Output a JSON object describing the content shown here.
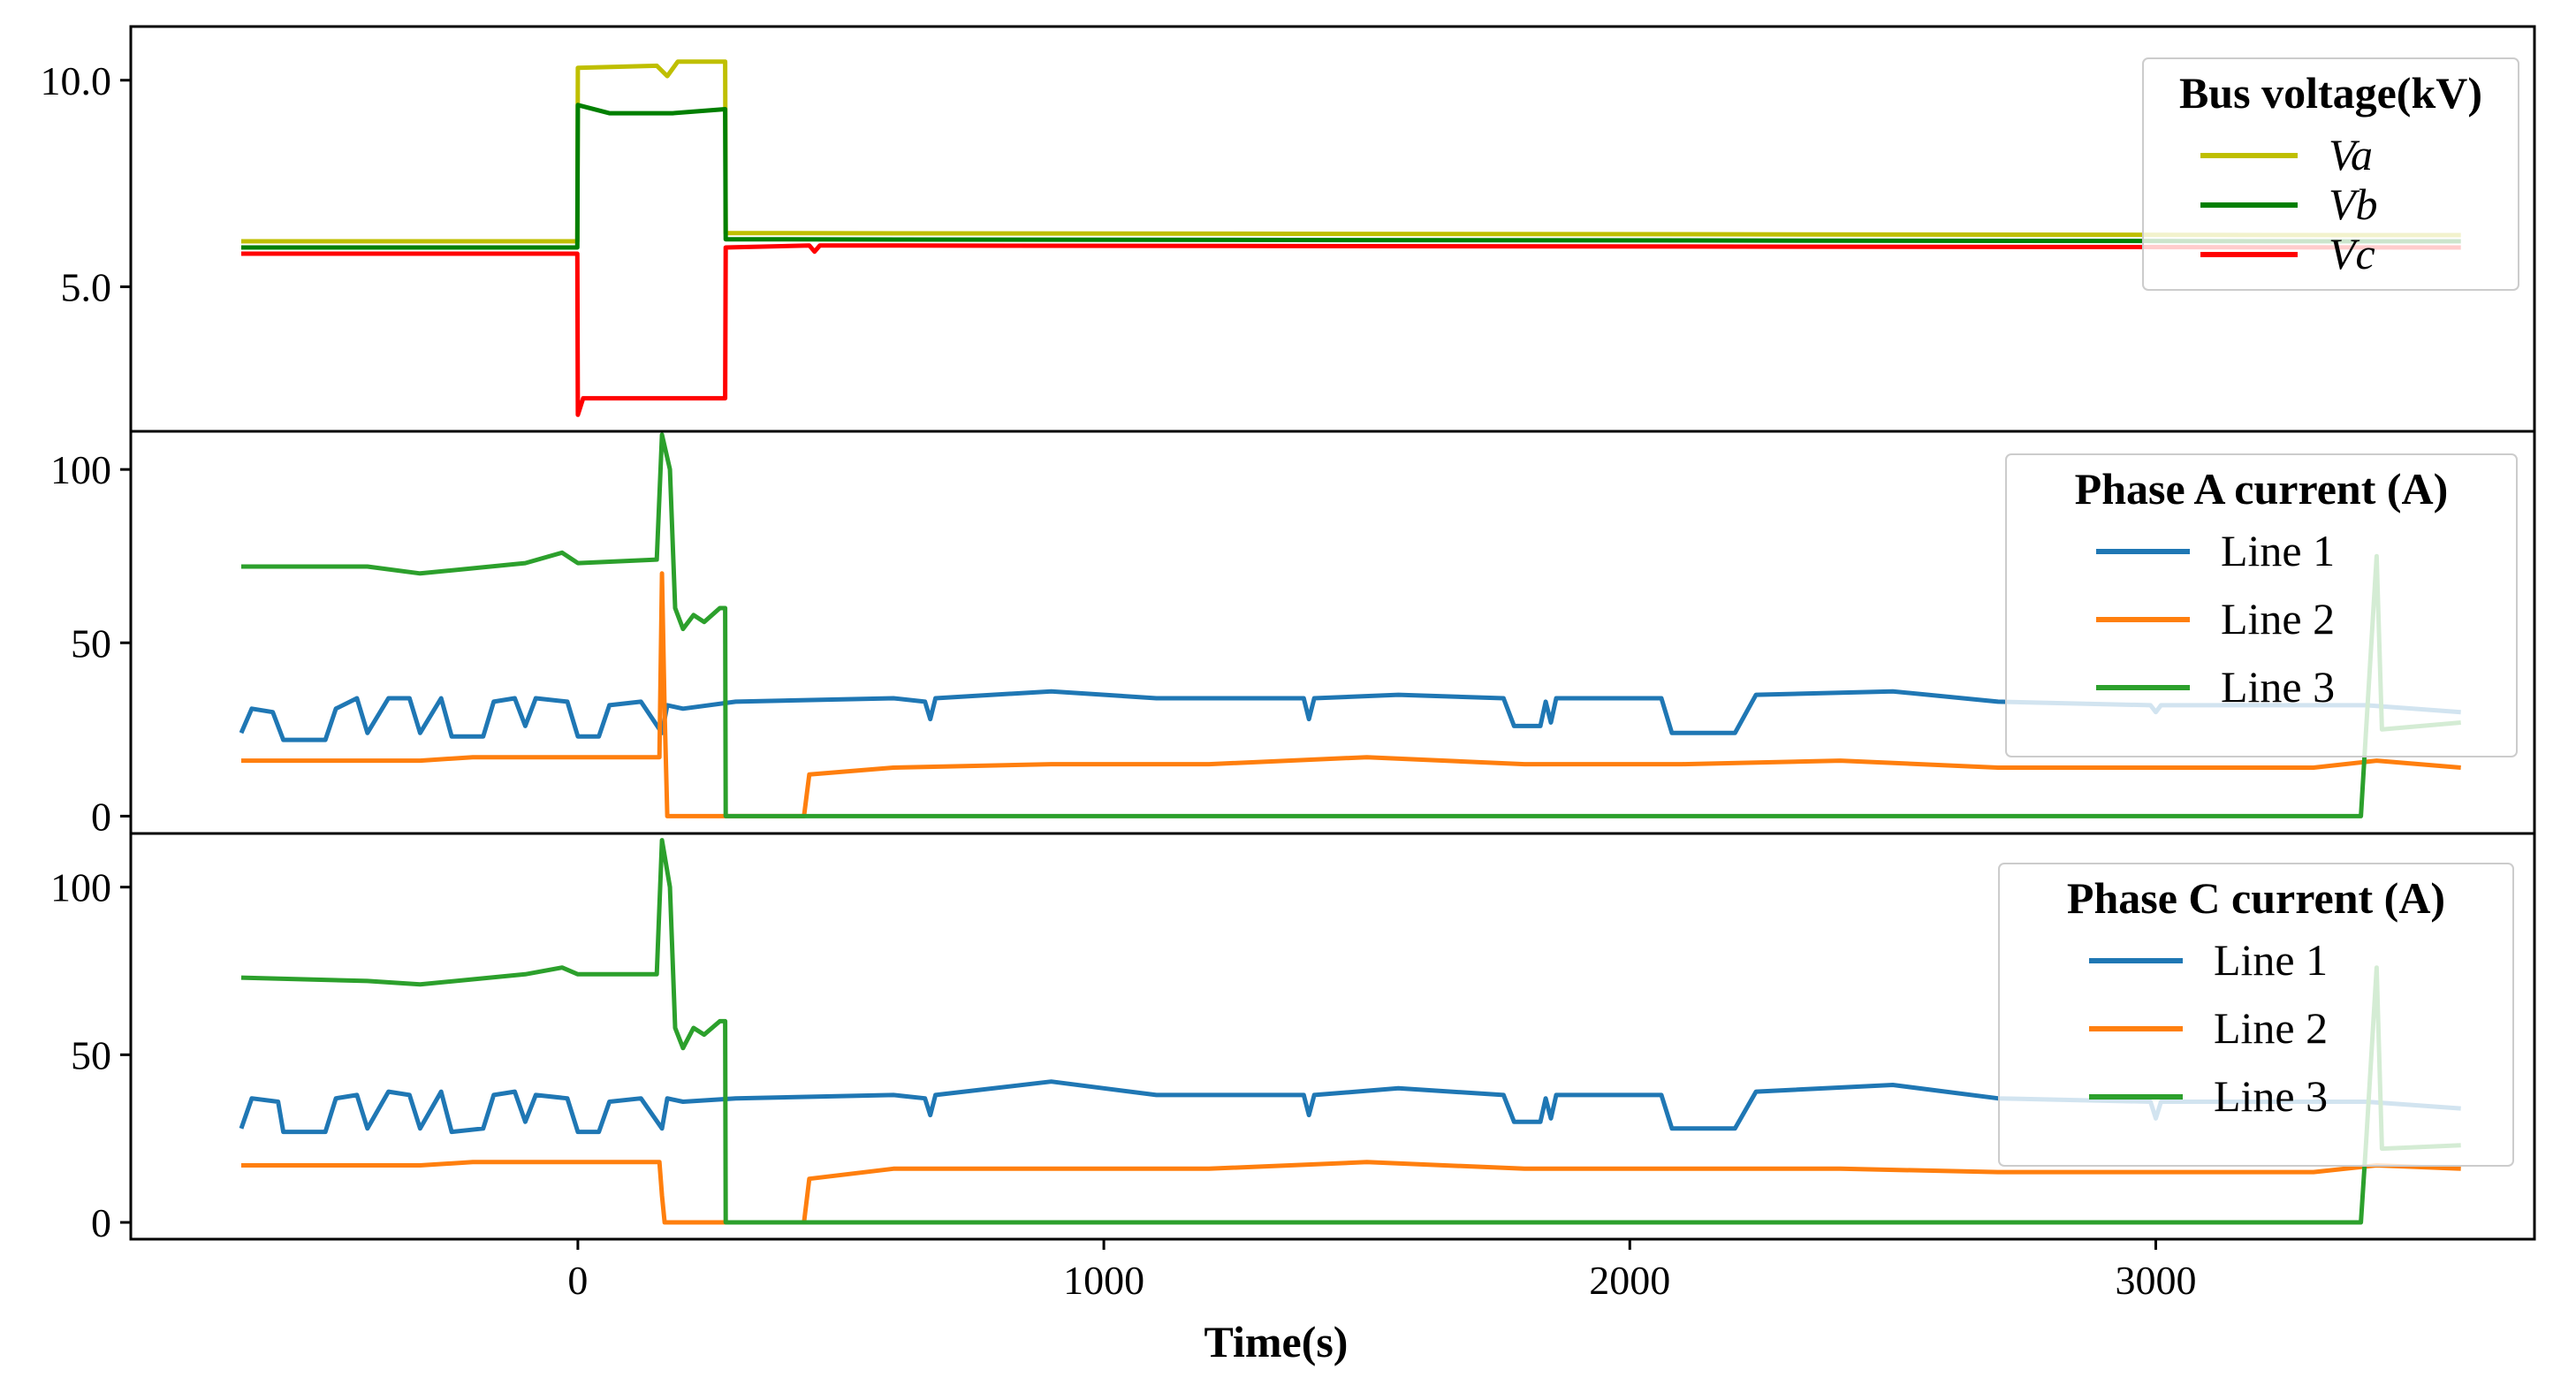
{
  "chart_data": {
    "type": "line",
    "xlabel": "Time(s)",
    "xlim": [
      -850,
      3720
    ],
    "xticks": [
      0,
      1000,
      2000,
      3000
    ],
    "xtick_labels": [
      "0",
      "1000",
      "2000",
      "3000"
    ],
    "panels": [
      {
        "legend_title": "Bus voltage(kV)",
        "legend_italic": true,
        "ylim": [
          1.5,
          11.3
        ],
        "yticks": [
          5.0,
          10.0
        ],
        "ytick_labels": [
          "5.0",
          "10.0"
        ],
        "series": [
          {
            "name": "Va",
            "color": "#bfbf00",
            "points": [
              [
                -640,
                6.1
              ],
              [
                -1,
                6.1
              ],
              [
                0,
                10.3
              ],
              [
                150,
                10.35
              ],
              [
                170,
                10.1
              ],
              [
                190,
                10.45
              ],
              [
                280,
                10.45
              ],
              [
                281,
                6.3
              ],
              [
                3420,
                6.25
              ],
              [
                3580,
                6.25
              ]
            ]
          },
          {
            "name": "Vb",
            "color": "#007f00",
            "points": [
              [
                -640,
                5.95
              ],
              [
                -1,
                5.95
              ],
              [
                0,
                9.4
              ],
              [
                60,
                9.2
              ],
              [
                180,
                9.2
              ],
              [
                280,
                9.3
              ],
              [
                281,
                6.15
              ],
              [
                3420,
                6.1
              ],
              [
                3580,
                6.1
              ]
            ]
          },
          {
            "name": "Vc",
            "color": "#ff0000",
            "points": [
              [
                -640,
                5.8
              ],
              [
                -1,
                5.8
              ],
              [
                0,
                1.9
              ],
              [
                10,
                2.3
              ],
              [
                280,
                2.3
              ],
              [
                281,
                5.95
              ],
              [
                440,
                6.0
              ],
              [
                450,
                5.85
              ],
              [
                460,
                6.0
              ],
              [
                3580,
                5.95
              ]
            ]
          }
        ]
      },
      {
        "legend_title": "Phase A current (A)",
        "legend_italic": false,
        "ylim": [
          -5,
          111
        ],
        "yticks": [
          0,
          50,
          100
        ],
        "ytick_labels": [
          "0",
          "50",
          "100"
        ],
        "series": [
          {
            "name": "Line 1",
            "color": "#1f77b4",
            "points": [
              [
                -640,
                24
              ],
              [
                -620,
                31
              ],
              [
                -580,
                30
              ],
              [
                -560,
                22
              ],
              [
                -480,
                22
              ],
              [
                -460,
                31
              ],
              [
                -420,
                34
              ],
              [
                -400,
                24
              ],
              [
                -360,
                34
              ],
              [
                -320,
                34
              ],
              [
                -300,
                24
              ],
              [
                -260,
                34
              ],
              [
                -240,
                23
              ],
              [
                -180,
                23
              ],
              [
                -160,
                33
              ],
              [
                -120,
                34
              ],
              [
                -100,
                26
              ],
              [
                -80,
                34
              ],
              [
                -20,
                33
              ],
              [
                0,
                23
              ],
              [
                40,
                23
              ],
              [
                60,
                32
              ],
              [
                120,
                33
              ],
              [
                160,
                24
              ],
              [
                170,
                32
              ],
              [
                200,
                31
              ],
              [
                300,
                33
              ],
              [
                600,
                34
              ],
              [
                660,
                33
              ],
              [
                670,
                28
              ],
              [
                680,
                34
              ],
              [
                900,
                36
              ],
              [
                1100,
                34
              ],
              [
                1380,
                34
              ],
              [
                1390,
                28
              ],
              [
                1400,
                34
              ],
              [
                1560,
                35
              ],
              [
                1760,
                34
              ],
              [
                1780,
                26
              ],
              [
                1830,
                26
              ],
              [
                1840,
                33
              ],
              [
                1850,
                27
              ],
              [
                1860,
                34
              ],
              [
                2060,
                34
              ],
              [
                2080,
                24
              ],
              [
                2200,
                24
              ],
              [
                2240,
                35
              ],
              [
                2500,
                36
              ],
              [
                2700,
                33
              ],
              [
                2990,
                32
              ],
              [
                3000,
                30
              ],
              [
                3010,
                32
              ],
              [
                3400,
                32
              ],
              [
                3580,
                30
              ]
            ]
          },
          {
            "name": "Line 2",
            "color": "#ff7f0e",
            "points": [
              [
                -640,
                16
              ],
              [
                -300,
                16
              ],
              [
                -200,
                17
              ],
              [
                155,
                17
              ],
              [
                160,
                70
              ],
              [
                165,
                30
              ],
              [
                170,
                0
              ],
              [
                430,
                0
              ],
              [
                440,
                12
              ],
              [
                600,
                14
              ],
              [
                900,
                15
              ],
              [
                1200,
                15
              ],
              [
                1500,
                17
              ],
              [
                1800,
                15
              ],
              [
                2100,
                15
              ],
              [
                2400,
                16
              ],
              [
                2700,
                14
              ],
              [
                3000,
                14
              ],
              [
                3300,
                14
              ],
              [
                3420,
                16
              ],
              [
                3580,
                14
              ]
            ]
          },
          {
            "name": "Line 3",
            "color": "#2ca02c",
            "points": [
              [
                -640,
                72
              ],
              [
                -400,
                72
              ],
              [
                -300,
                70
              ],
              [
                -100,
                73
              ],
              [
                -30,
                76
              ],
              [
                0,
                73
              ],
              [
                150,
                74
              ],
              [
                160,
                110
              ],
              [
                175,
                100
              ],
              [
                185,
                60
              ],
              [
                200,
                54
              ],
              [
                220,
                58
              ],
              [
                240,
                56
              ],
              [
                270,
                60
              ],
              [
                280,
                60
              ],
              [
                281,
                0
              ],
              [
                3390,
                0
              ],
              [
                3400,
                25
              ],
              [
                3420,
                75
              ],
              [
                3430,
                25
              ],
              [
                3580,
                27
              ]
            ]
          }
        ]
      },
      {
        "legend_title": "Phase C current (A)",
        "legend_italic": false,
        "ylim": [
          -5,
          116
        ],
        "yticks": [
          0,
          50,
          100
        ],
        "ytick_labels": [
          "0",
          "50",
          "100"
        ],
        "series": [
          {
            "name": "Line 1",
            "color": "#1f77b4",
            "points": [
              [
                -640,
                28
              ],
              [
                -620,
                37
              ],
              [
                -570,
                36
              ],
              [
                -560,
                27
              ],
              [
                -480,
                27
              ],
              [
                -460,
                37
              ],
              [
                -420,
                38
              ],
              [
                -400,
                28
              ],
              [
                -360,
                39
              ],
              [
                -320,
                38
              ],
              [
                -300,
                28
              ],
              [
                -260,
                39
              ],
              [
                -240,
                27
              ],
              [
                -180,
                28
              ],
              [
                -160,
                38
              ],
              [
                -120,
                39
              ],
              [
                -100,
                30
              ],
              [
                -80,
                38
              ],
              [
                -20,
                37
              ],
              [
                0,
                27
              ],
              [
                40,
                27
              ],
              [
                60,
                36
              ],
              [
                120,
                37
              ],
              [
                160,
                28
              ],
              [
                170,
                37
              ],
              [
                200,
                36
              ],
              [
                300,
                37
              ],
              [
                600,
                38
              ],
              [
                660,
                37
              ],
              [
                670,
                32
              ],
              [
                680,
                38
              ],
              [
                900,
                42
              ],
              [
                1100,
                38
              ],
              [
                1380,
                38
              ],
              [
                1390,
                32
              ],
              [
                1400,
                38
              ],
              [
                1560,
                40
              ],
              [
                1760,
                38
              ],
              [
                1780,
                30
              ],
              [
                1830,
                30
              ],
              [
                1840,
                37
              ],
              [
                1850,
                31
              ],
              [
                1860,
                38
              ],
              [
                2060,
                38
              ],
              [
                2080,
                28
              ],
              [
                2200,
                28
              ],
              [
                2240,
                39
              ],
              [
                2500,
                41
              ],
              [
                2700,
                37
              ],
              [
                2990,
                36
              ],
              [
                3000,
                31
              ],
              [
                3010,
                36
              ],
              [
                3400,
                36
              ],
              [
                3580,
                34
              ]
            ]
          },
          {
            "name": "Line 2",
            "color": "#ff7f0e",
            "points": [
              [
                -640,
                17
              ],
              [
                -300,
                17
              ],
              [
                -200,
                18
              ],
              [
                155,
                18
              ],
              [
                160,
                8
              ],
              [
                165,
                0
              ],
              [
                430,
                0
              ],
              [
                440,
                13
              ],
              [
                600,
                16
              ],
              [
                900,
                16
              ],
              [
                1200,
                16
              ],
              [
                1500,
                18
              ],
              [
                1800,
                16
              ],
              [
                2100,
                16
              ],
              [
                2400,
                16
              ],
              [
                2700,
                15
              ],
              [
                3000,
                15
              ],
              [
                3300,
                15
              ],
              [
                3420,
                17
              ],
              [
                3580,
                16
              ]
            ]
          },
          {
            "name": "Line 3",
            "color": "#2ca02c",
            "points": [
              [
                -640,
                73
              ],
              [
                -400,
                72
              ],
              [
                -300,
                71
              ],
              [
                -100,
                74
              ],
              [
                -30,
                76
              ],
              [
                0,
                74
              ],
              [
                150,
                74
              ],
              [
                160,
                114
              ],
              [
                175,
                100
              ],
              [
                185,
                58
              ],
              [
                200,
                52
              ],
              [
                220,
                58
              ],
              [
                240,
                56
              ],
              [
                270,
                60
              ],
              [
                280,
                60
              ],
              [
                281,
                0
              ],
              [
                3390,
                0
              ],
              [
                3400,
                24
              ],
              [
                3420,
                76
              ],
              [
                3430,
                22
              ],
              [
                3580,
                23
              ]
            ]
          }
        ]
      }
    ]
  }
}
